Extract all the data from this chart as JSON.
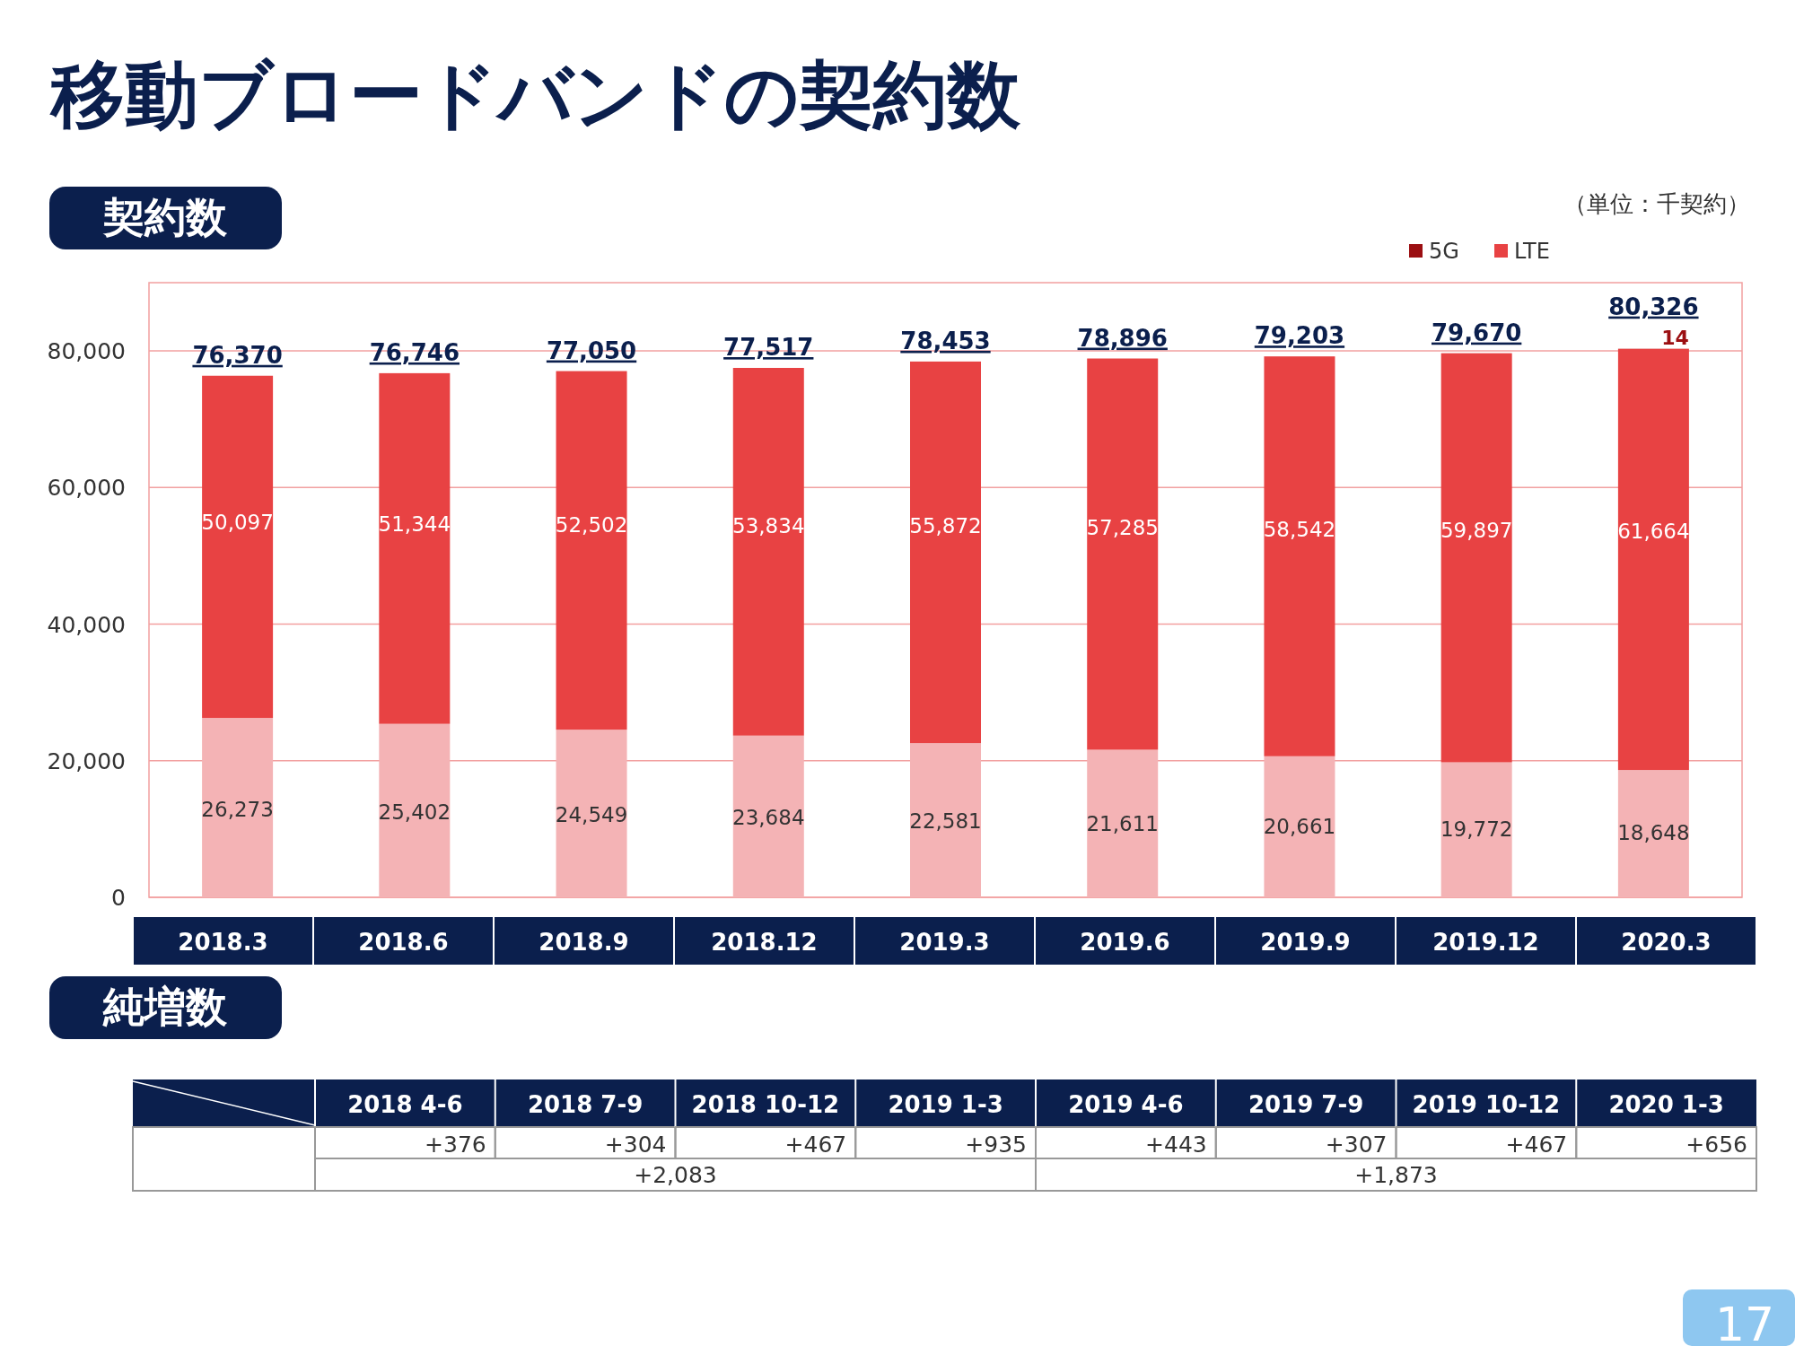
{
  "chart_data": [
    {
      "type": "bar",
      "title": "移動ブロードバンドの契約数",
      "subtitle": "契約数",
      "stacked": true,
      "categories": [
        "2018.3",
        "2018.6",
        "2018.9",
        "2018.12",
        "2019.3",
        "2019.6",
        "2019.9",
        "2019.12",
        "2020.3"
      ],
      "series": [
        {
          "color": "#f4b3b5",
          "values": [
            26273,
            25402,
            24549,
            23684,
            22581,
            21611,
            20661,
            19772,
            18648
          ],
          "value_labels": [
            "26,273",
            "25,402",
            "24,549",
            "23,684",
            "22,581",
            "21,611",
            "20,661",
            "19,772",
            "18,648"
          ]
        },
        {
          "name": "LTE",
          "color": "#e84243",
          "values": [
            50097,
            51344,
            52502,
            53834,
            55872,
            57285,
            58542,
            59897,
            61664
          ],
          "value_labels": [
            "50,097",
            "51,344",
            "52,502",
            "53,834",
            "55,872",
            "57,285",
            "58,542",
            "59,897",
            "61,664"
          ]
        },
        {
          "name": "5G",
          "color": "#9b0f12",
          "values": [
            null,
            null,
            null,
            null,
            null,
            null,
            null,
            null,
            14
          ],
          "value_labels": [
            null,
            null,
            null,
            null,
            null,
            null,
            null,
            null,
            "14"
          ]
        }
      ],
      "totals": [
        "76,370",
        "76,746",
        "77,050",
        "77,517",
        "78,453",
        "78,896",
        "79,203",
        "79,670",
        "80,326"
      ],
      "ylim": [
        0,
        90000
      ],
      "yticks": [
        {
          "value": 0,
          "label": "0"
        },
        {
          "value": 20000,
          "label": "20,000"
        },
        {
          "value": 40000,
          "label": "40,000"
        },
        {
          "value": 60000,
          "label": "60,000"
        },
        {
          "value": 80000,
          "label": "80,000"
        }
      ],
      "grid": "y",
      "legend": "top right",
      "annotations": [
        "（単位：千契約）",
        "17"
      ]
    },
    {
      "type": "other",
      "title": "純増数",
      "categories": [
        "2018 4-6",
        "2018 7-9",
        "2018 10-12",
        "2019 1-3",
        "2019 4-6",
        "2019 7-9",
        "2019 10-12",
        "2020 1-3"
      ],
      "annotations": [
        "+376",
        "+304",
        "+467",
        "+935",
        "+443",
        "+307",
        "+467",
        "+656",
        "+2,083",
        "+1,873"
      ]
    }
  ]
}
